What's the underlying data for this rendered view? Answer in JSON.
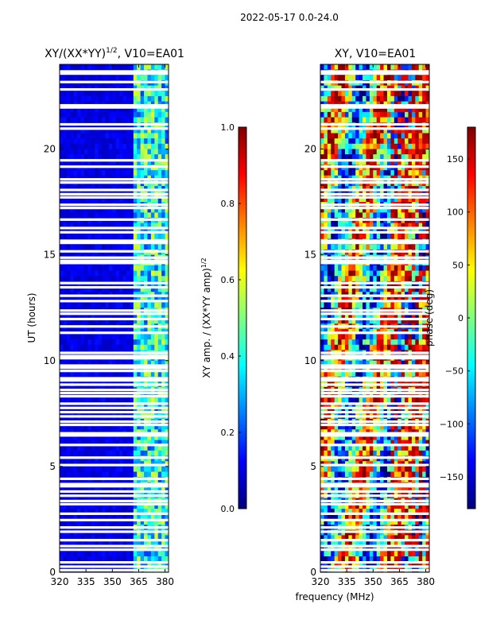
{
  "figure": {
    "suptitle": "2022-05-17 0.0-24.0",
    "shared_xlabel": "frequency (MHz)"
  },
  "colors": {
    "colormap": "jet",
    "jet_stops": [
      "#00007f",
      "#0000ff",
      "#007fff",
      "#00ffff",
      "#7fff7f",
      "#ffff00",
      "#ff7f00",
      "#ff0000",
      "#7f0000"
    ],
    "flag_gap": "#ffffff",
    "axis": "#000000"
  },
  "chart_data": [
    {
      "type": "heatmap",
      "title": "XY/(XX*YY)",
      "title_sup": "1/2",
      "title_suffix": ", V10=EA01",
      "xlabel": "",
      "ylabel": "UT (hours)",
      "xlim": [
        320,
        382
      ],
      "ylim": [
        0,
        24
      ],
      "xticks": [
        320,
        335,
        350,
        365,
        380
      ],
      "yticks": [
        0,
        5,
        10,
        15,
        20
      ],
      "value_range": [
        0.0,
        1.0
      ],
      "description_of_pattern": "low amplitude (~0.05-0.15) below 362 MHz, patchy 0.3-0.6 at 362-382 MHz",
      "colorbar": {
        "label": "XY amp. / (XX*YY amp)",
        "label_sup": "1/2",
        "range": [
          0.0,
          1.0
        ],
        "ticks": [
          "0.0",
          "0.2",
          "0.4",
          "0.6",
          "0.8",
          "1.0"
        ]
      }
    },
    {
      "type": "heatmap",
      "title": "XY, V10=EA01",
      "xlabel": "frequency (MHz)",
      "ylabel": "",
      "xlim": [
        320,
        382
      ],
      "ylim": [
        0,
        24
      ],
      "xticks": [
        320,
        335,
        350,
        365,
        380
      ],
      "yticks": [
        0,
        5,
        10,
        15,
        20
      ],
      "value_range": [
        -180,
        180
      ],
      "description_of_pattern": "phase wraps across full range; vertical stripes near 335-355 MHz, reds 360-380 MHz",
      "colorbar": {
        "label": "phase (deg)",
        "range": [
          -180,
          180
        ],
        "ticks": [
          "-150",
          "-100",
          "-50",
          "0",
          "50",
          "100",
          "150"
        ]
      }
    }
  ],
  "flagged_hours": [
    0.08,
    0.25,
    0.45,
    1.05,
    1.22,
    1.5,
    1.9,
    2.1,
    2.45,
    2.75,
    3.2,
    3.35,
    3.6,
    3.8,
    4.05,
    4.15,
    4.4,
    5.05,
    5.4,
    6.0,
    6.45,
    6.5,
    6.55,
    6.95,
    7.1,
    7.35,
    7.55,
    7.75,
    7.95,
    8.3,
    8.45,
    8.6,
    8.85,
    9.05,
    9.15,
    9.5,
    9.65,
    9.75,
    10.1,
    10.2,
    10.35,
    11.3,
    11.6,
    11.95,
    12.2,
    12.35,
    12.8,
    13.05,
    13.45,
    13.65,
    14.6,
    14.7,
    14.85,
    15.15,
    15.55,
    15.65,
    16.05,
    16.25,
    16.65,
    17.2,
    17.35,
    17.7,
    17.85,
    18.05,
    18.4,
    18.55,
    19.15,
    19.45,
    20.95,
    21.15,
    21.95,
    22.05,
    22.8,
    23.15,
    23.55,
    23.65
  ]
}
